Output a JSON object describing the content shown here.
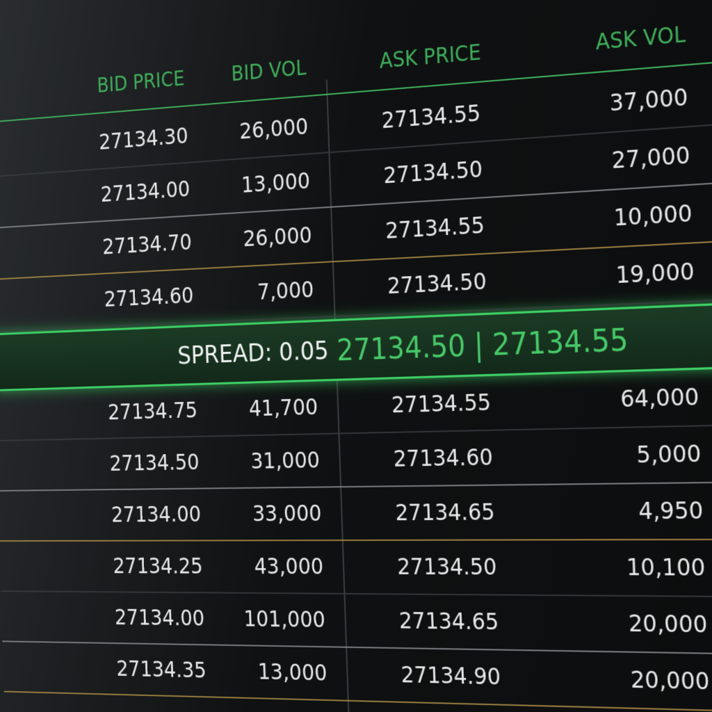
{
  "header": {
    "columns": [
      "BID PRICE",
      "BID VOL",
      "ASK PRICE",
      "ASK VOL"
    ]
  },
  "asks_table": {
    "rows": [
      [
        "27134.30",
        "26,000",
        "27134.55",
        "37,000"
      ],
      [
        "27134.00",
        "13,000",
        "27134.50",
        "27,000"
      ],
      [
        "27134.70",
        "26,000",
        "27134.55",
        "10,000"
      ],
      [
        "27134.60",
        "7,000",
        "27134.50",
        "19,000"
      ]
    ]
  },
  "spread": {
    "label": "SPREAD: 0.05",
    "prices": "27134.50 | 27134.55"
  },
  "bids_table": {
    "rows": [
      [
        "27134.75",
        "41,700",
        "27134.55",
        "64,000"
      ],
      [
        "27134.50",
        "31,000",
        "27134.60",
        "5,000"
      ],
      [
        "27134.00",
        "33,000",
        "27134.65",
        "4,950"
      ],
      [
        "27134.25",
        "43,000",
        "27134.50",
        "10,100"
      ],
      [
        "27134.00",
        "101,000",
        "27134.65",
        "20,000"
      ],
      [
        "27134.35",
        "13,000",
        "27134.90",
        "20,000"
      ]
    ]
  }
}
